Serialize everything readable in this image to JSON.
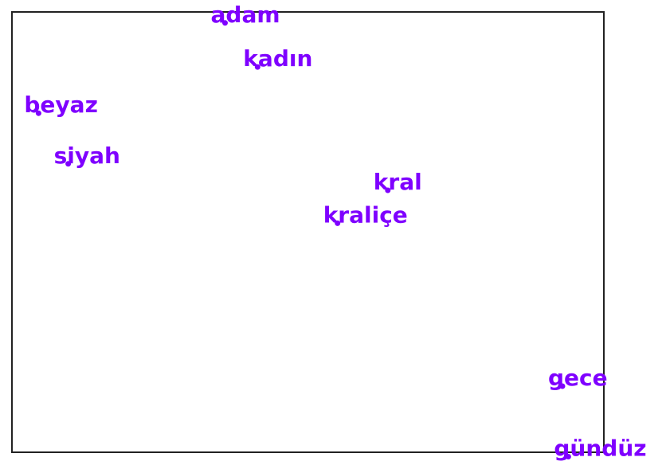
{
  "chart_data": {
    "type": "scatter",
    "title": "",
    "xlabel": "",
    "ylabel": "",
    "grid": false,
    "xlim": [
      -1.0,
      1.0
    ],
    "ylim": [
      -1.0,
      1.0
    ],
    "color": "#7f00ff",
    "points": [
      {
        "label": "adam",
        "x": -0.28,
        "y": 0.95
      },
      {
        "label": "kadın",
        "x": -0.17,
        "y": 0.75
      },
      {
        "label": "beyaz",
        "x": -0.91,
        "y": 0.54
      },
      {
        "label": "siyah",
        "x": -0.81,
        "y": 0.31
      },
      {
        "label": "kral",
        "x": 0.27,
        "y": 0.19
      },
      {
        "label": "kraliçe",
        "x": 0.1,
        "y": 0.04
      },
      {
        "label": "gece",
        "x": 0.86,
        "y": -0.7
      },
      {
        "label": "gündüz",
        "x": 0.88,
        "y": -1.02
      }
    ]
  }
}
